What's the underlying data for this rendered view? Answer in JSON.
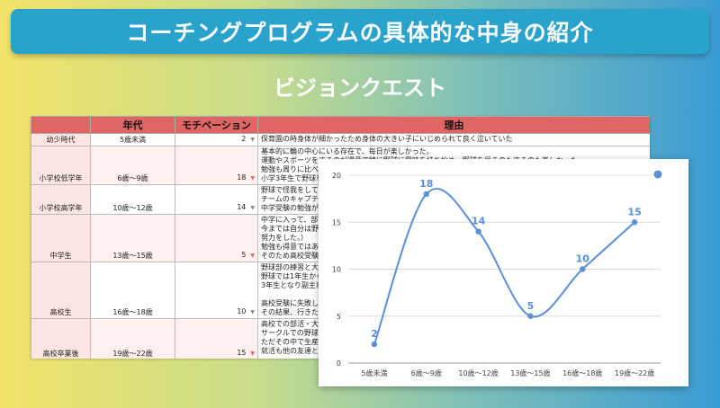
{
  "slide": {
    "title": "コーチングプログラムの具体的な中身の紹介",
    "subtitle": "ビジョンクエスト"
  },
  "sheet": {
    "headers": [
      "",
      "年代",
      "モチベーション",
      "理由"
    ],
    "rows": [
      {
        "age": "幼少時代",
        "years": "5歳未満",
        "motivation": "2",
        "reason": "保育園の時身体が細かったため身体の大きい子にいじめられて良く泣いていた"
      },
      {
        "age": "小学校低学年",
        "years": "6歳〜9歳",
        "motivation": "18",
        "reason": "基本的に輪の中心にいる存在で、毎日が楽しかった。\n運動やスポーツをするのが得意で特に野球に興味を持ち始め、野球を見るのもするのも楽しかった。\n勉強も周りに比べると得意\n小学3年生で野球を習い始"
      },
      {
        "age": "小学校高学年",
        "years": "10歳〜12歳",
        "motivation": "14",
        "reason": "野球で怪我をして、思うよ\nチームのキャプテンにもな\n中学受験の勉強が辛かった"
      },
      {
        "age": "中学生",
        "years": "13歳〜15歳",
        "motivation": "5",
        "reason": "中学に入って、部活ではな\n今までは自分は野球が上手\n努力をした。）\n勉強も得意ではあったが、\nそのため高校受験に失敗し"
      },
      {
        "age": "高校生",
        "years": "16歳〜18歳",
        "motivation": "10",
        "reason": "野球部の練習と大学受験勉\n野球では1年生からレギュ\n3年生となり副主将だった\n\n高校受験に失敗した悔しさ\nその結果、行きたい大学に"
      },
      {
        "age": "高校卒業後",
        "years": "19歳〜22歳",
        "motivation": "15",
        "reason": "高校での部活・大学受験の\nサークルでの野球、飲み会\nただその中で生産性の無さ\n就活も他の友達と比べて早"
      }
    ]
  },
  "chart_data": {
    "type": "line",
    "categories": [
      "5歳未満",
      "6歳〜9歳",
      "10歳〜12歳",
      "13歳〜15歳",
      "16歳〜18歳",
      "19歳〜22歳"
    ],
    "series": [
      {
        "values": [
          2,
          18,
          14,
          5,
          10,
          15
        ]
      }
    ],
    "ylim": [
      0,
      20
    ],
    "yticks": [
      0,
      5,
      10,
      15,
      20
    ],
    "grid": true,
    "legend": "top-right",
    "color": "#5b8fd6"
  }
}
